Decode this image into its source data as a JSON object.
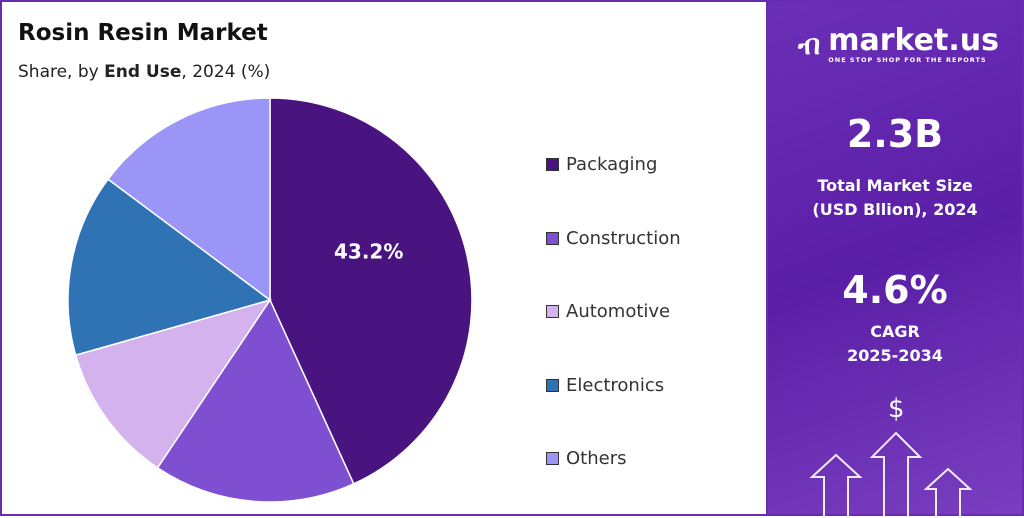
{
  "chart_data": {
    "type": "pie",
    "title": "Rosin Resin Market",
    "subtitle_parts": [
      "Share, by ",
      "End Use",
      ", 2024 (%)"
    ],
    "categories": [
      "Packaging",
      "Construction",
      "Automotive",
      "Electronics",
      "Others"
    ],
    "values": [
      43.2,
      16.2,
      11.2,
      14.6,
      14.8
    ],
    "colors": [
      "#4a1480",
      "#7e4fd0",
      "#d4b2ee",
      "#2f73b5",
      "#9b95f7"
    ],
    "data_labels": {
      "Packaging": "43.2%"
    },
    "legend_position": "right"
  },
  "panel": {
    "brand": "market.us",
    "tagline": "ONE STOP SHOP FOR THE REPORTS",
    "market_size": "2.3B",
    "market_size_label_1": "Total Market Size",
    "market_size_label_2": "(USD Bllion), 2024",
    "cagr": "4.6%",
    "cagr_label_1": "CAGR",
    "cagr_label_2": "2025-2034",
    "dollar_symbol": "$"
  }
}
